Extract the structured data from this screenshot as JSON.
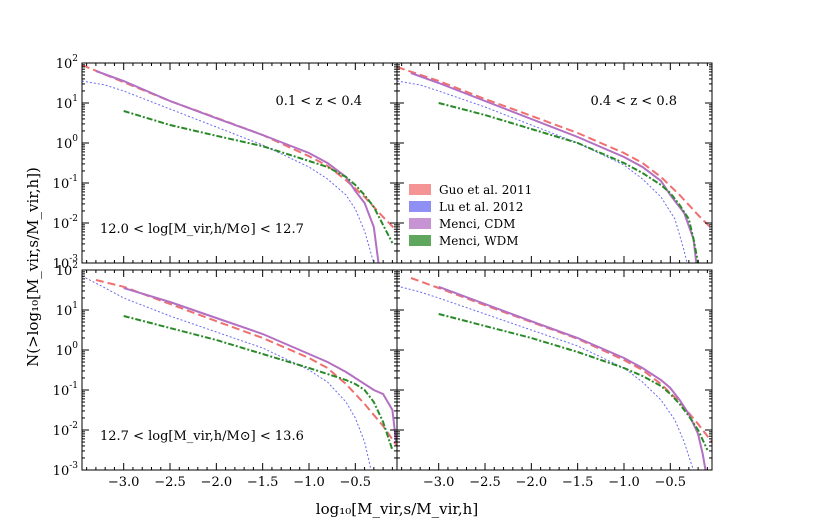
{
  "chart_data": {
    "type": "line",
    "layout": "2x2 panels with shared axes",
    "xlabel": "log₁₀[M_vir,s/M_vir,h]",
    "ylabel": "N(>log₁₀[M_vir,s/M_vir,h])",
    "xlim": [
      -3.45,
      -0.05
    ],
    "ylim_log10": [
      -3,
      2
    ],
    "x_ticks": [
      -3.0,
      -2.5,
      -2.0,
      -1.5,
      -1.0,
      -0.5
    ],
    "x_tick_labels": [
      "−3.0",
      "−2.5",
      "−2.0",
      "−1.5",
      "−1.0",
      "−0.5"
    ],
    "y_ticks": [
      {
        "base": "10",
        "exp": "2"
      },
      {
        "base": "10",
        "exp": "1"
      },
      {
        "base": "10",
        "exp": "0"
      },
      {
        "base": "10",
        "exp": "-1"
      },
      {
        "base": "10",
        "exp": "-2"
      },
      {
        "base": "10",
        "exp": "-3"
      }
    ],
    "series_styles": [
      {
        "name": "Guo et al. 2011",
        "color": "#f07070",
        "dash": "8,4",
        "width": 2
      },
      {
        "name": "Lu et al. 2012",
        "color": "#6a6af0",
        "dash": "2,2",
        "width": 1
      },
      {
        "name": "Menci, CDM",
        "color": "#b370c3",
        "dash": "",
        "width": 2
      },
      {
        "name": "Menci, WDM",
        "color": "#2a8a2a",
        "dash": "6,2,2,2",
        "width": 2
      }
    ],
    "legend": {
      "location": "center-left of top-right panel",
      "entries": [
        "Guo et al. 2011",
        "Lu et al. 2012",
        "Menci, CDM",
        "Menci, WDM"
      ]
    },
    "panels": [
      {
        "name": "top-left",
        "annotations": [
          {
            "text": "0.1 < z < 0.4",
            "pos": "top-right"
          },
          {
            "text": "12.0 < log[M_vir,h/M⊙] < 12.7",
            "pos": "bottom-left"
          }
        ],
        "series": [
          {
            "name": "Guo et al. 2011",
            "x": [
              -3.45,
              -3.0,
              -2.5,
              -2.0,
              -1.5,
              -1.0,
              -0.8,
              -0.6,
              -0.4,
              -0.2,
              -0.05
            ],
            "log10y": [
              1.95,
              1.52,
              1.05,
              0.63,
              0.2,
              -0.33,
              -0.57,
              -0.93,
              -1.35,
              -1.85,
              -2.2
            ]
          },
          {
            "name": "Lu et al. 2012",
            "x": [
              -3.45,
              -3.2,
              -3.0,
              -2.5,
              -2.0,
              -1.5,
              -1.0,
              -0.8,
              -0.6,
              -0.5,
              -0.4,
              -0.35,
              -0.3
            ],
            "log10y": [
              1.55,
              1.45,
              1.3,
              0.85,
              0.4,
              -0.05,
              -0.6,
              -0.9,
              -1.3,
              -1.65,
              -2.2,
              -2.6,
              -3.0
            ]
          },
          {
            "name": "Menci, CDM",
            "x": [
              -3.3,
              -3.0,
              -2.5,
              -2.0,
              -1.5,
              -1.0,
              -0.8,
              -0.6,
              -0.5,
              -0.4,
              -0.3,
              -0.25
            ],
            "log10y": [
              1.8,
              1.55,
              1.05,
              0.62,
              0.2,
              -0.25,
              -0.5,
              -0.85,
              -1.2,
              -1.5,
              -2.1,
              -3.0
            ]
          },
          {
            "name": "Menci, WDM",
            "x": [
              -3.0,
              -2.5,
              -2.0,
              -1.5,
              -1.0,
              -0.8,
              -0.6,
              -0.5,
              -0.4,
              -0.3,
              -0.2,
              -0.1
            ],
            "log10y": [
              0.8,
              0.45,
              0.18,
              -0.08,
              -0.45,
              -0.6,
              -0.85,
              -1.05,
              -1.3,
              -1.6,
              -2.05,
              -2.5
            ]
          }
        ]
      },
      {
        "name": "top-right",
        "annotations": [
          {
            "text": "0.4 < z < 0.8",
            "pos": "top-right"
          }
        ],
        "series": [
          {
            "name": "Guo et al. 2011",
            "x": [
              -3.45,
              -3.0,
              -2.5,
              -2.0,
              -1.5,
              -1.0,
              -0.8,
              -0.6,
              -0.4,
              -0.2,
              -0.05
            ],
            "log10y": [
              1.9,
              1.55,
              1.1,
              0.68,
              0.25,
              -0.25,
              -0.5,
              -0.85,
              -1.3,
              -1.8,
              -2.15
            ]
          },
          {
            "name": "Lu et al. 2012",
            "x": [
              -3.45,
              -3.2,
              -3.0,
              -2.5,
              -2.0,
              -1.5,
              -1.0,
              -0.8,
              -0.6,
              -0.45,
              -0.4,
              -0.35,
              -0.32
            ],
            "log10y": [
              1.55,
              1.45,
              1.3,
              0.9,
              0.45,
              0.0,
              -0.55,
              -0.9,
              -1.35,
              -1.9,
              -2.3,
              -2.7,
              -3.0
            ]
          },
          {
            "name": "Menci, CDM",
            "x": [
              -3.3,
              -3.0,
              -2.5,
              -2.0,
              -1.5,
              -1.0,
              -0.8,
              -0.6,
              -0.5,
              -0.35,
              -0.25,
              -0.22
            ],
            "log10y": [
              1.75,
              1.5,
              1.05,
              0.6,
              0.15,
              -0.35,
              -0.6,
              -0.95,
              -1.3,
              -1.75,
              -2.4,
              -3.0
            ]
          },
          {
            "name": "Menci, WDM",
            "x": [
              -3.0,
              -2.5,
              -2.0,
              -1.5,
              -1.0,
              -0.8,
              -0.6,
              -0.5,
              -0.4,
              -0.3,
              -0.25,
              -0.2
            ],
            "log10y": [
              1.0,
              0.7,
              0.35,
              0.0,
              -0.5,
              -0.75,
              -1.05,
              -1.25,
              -1.55,
              -1.9,
              -2.4,
              -3.0
            ]
          }
        ]
      },
      {
        "name": "bottom-left",
        "annotations": [
          {
            "text": "12.7 < log[M_vir,h/M⊙] < 13.6",
            "pos": "bottom-left"
          }
        ],
        "series": [
          {
            "name": "Guo et al. 2011",
            "x": [
              -3.3,
              -3.0,
              -2.5,
              -2.0,
              -1.5,
              -1.0,
              -0.8,
              -0.6,
              -0.4,
              -0.2,
              -0.05
            ],
            "log10y": [
              1.75,
              1.58,
              1.15,
              0.72,
              0.3,
              -0.2,
              -0.45,
              -0.85,
              -1.35,
              -1.9,
              -2.4
            ]
          },
          {
            "name": "Lu et al. 2012",
            "x": [
              -3.45,
              -3.2,
              -3.0,
              -2.5,
              -2.0,
              -1.5,
              -1.0,
              -0.8,
              -0.6,
              -0.5,
              -0.4,
              -0.35,
              -0.33
            ],
            "log10y": [
              1.85,
              1.55,
              1.3,
              0.85,
              0.45,
              0.05,
              -0.5,
              -0.8,
              -1.3,
              -1.7,
              -2.3,
              -2.8,
              -3.0
            ]
          },
          {
            "name": "Menci, CDM",
            "x": [
              -3.0,
              -2.5,
              -2.0,
              -1.5,
              -1.0,
              -0.8,
              -0.6,
              -0.5,
              -0.4,
              -0.3,
              -0.2,
              -0.1,
              -0.06
            ],
            "log10y": [
              1.55,
              1.2,
              0.8,
              0.4,
              -0.1,
              -0.3,
              -0.55,
              -0.7,
              -0.85,
              -1.0,
              -1.1,
              -1.5,
              -2.3
            ]
          },
          {
            "name": "Menci, WDM",
            "x": [
              -3.0,
              -2.5,
              -2.0,
              -1.5,
              -1.0,
              -0.8,
              -0.6,
              -0.5,
              -0.4,
              -0.3,
              -0.2,
              -0.1
            ],
            "log10y": [
              0.85,
              0.55,
              0.25,
              -0.1,
              -0.45,
              -0.6,
              -0.75,
              -0.85,
              -1.0,
              -1.3,
              -1.8,
              -2.5
            ]
          }
        ]
      },
      {
        "name": "bottom-right",
        "annotations": [],
        "series": [
          {
            "name": "Guo et al. 2011",
            "x": [
              -3.3,
              -3.0,
              -2.5,
              -2.0,
              -1.5,
              -1.0,
              -0.8,
              -0.6,
              -0.4,
              -0.2,
              -0.05
            ],
            "log10y": [
              1.8,
              1.55,
              1.12,
              0.7,
              0.28,
              -0.25,
              -0.5,
              -0.85,
              -1.3,
              -1.85,
              -2.3
            ]
          },
          {
            "name": "Lu et al. 2012",
            "x": [
              -3.45,
              -3.2,
              -3.0,
              -2.5,
              -2.0,
              -1.5,
              -1.0,
              -0.8,
              -0.6,
              -0.45,
              -0.35,
              -0.28,
              -0.25
            ],
            "log10y": [
              1.6,
              1.45,
              1.3,
              0.9,
              0.5,
              0.1,
              -0.45,
              -0.8,
              -1.25,
              -1.75,
              -2.3,
              -2.8,
              -3.0
            ]
          },
          {
            "name": "Menci, CDM",
            "x": [
              -3.0,
              -2.5,
              -2.0,
              -1.5,
              -1.0,
              -0.8,
              -0.6,
              -0.5,
              -0.4,
              -0.3,
              -0.2,
              -0.15,
              -0.12
            ],
            "log10y": [
              1.58,
              1.15,
              0.72,
              0.3,
              -0.2,
              -0.45,
              -0.75,
              -0.95,
              -1.25,
              -1.6,
              -2.1,
              -2.6,
              -3.0
            ]
          },
          {
            "name": "Menci, WDM",
            "x": [
              -3.0,
              -2.5,
              -2.0,
              -1.5,
              -1.0,
              -0.8,
              -0.6,
              -0.5,
              -0.4,
              -0.3,
              -0.2,
              -0.1
            ],
            "log10y": [
              0.9,
              0.6,
              0.3,
              -0.05,
              -0.45,
              -0.65,
              -0.9,
              -1.1,
              -1.35,
              -1.65,
              -2.0,
              -2.5
            ]
          }
        ]
      }
    ]
  }
}
